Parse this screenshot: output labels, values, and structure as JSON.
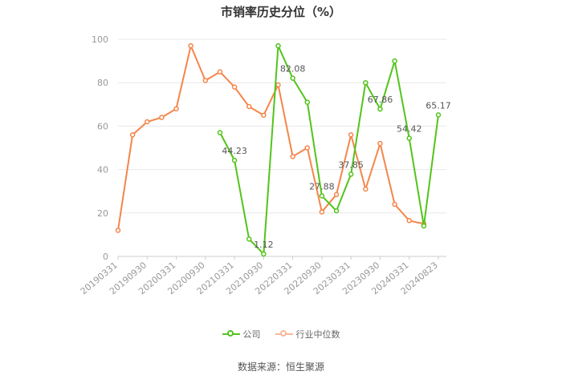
{
  "chart_data": {
    "type": "line",
    "title": "市销率历史分位（%）",
    "ylim": [
      0,
      100
    ],
    "yticks": [
      "0",
      "20",
      "40",
      "60",
      "80",
      "100"
    ],
    "xticks": [
      "20190331",
      "20190930",
      "20200331",
      "20200930",
      "20210331",
      "20210930",
      "20220331",
      "20220930",
      "20230331",
      "20230930",
      "20240331",
      "20240823"
    ],
    "grid": true,
    "legend_position": "bottom",
    "series": [
      {
        "name": "公司",
        "color": "#52c41a",
        "values": [
          null,
          null,
          null,
          null,
          null,
          null,
          null,
          57,
          44.23,
          8,
          1.12,
          97,
          82.08,
          71,
          27.88,
          21,
          37.85,
          80,
          67.86,
          90,
          54.42,
          14,
          65.17
        ],
        "labels": {
          "8": "44.23",
          "10": "1.12",
          "12": "82.08",
          "14": "27.88",
          "16": "37.85",
          "18": "67.86",
          "20": "54.42",
          "22": "65.17"
        }
      },
      {
        "name": "行业中位数",
        "color": "#f5854a",
        "values": [
          12,
          56,
          62,
          64,
          68,
          97,
          81,
          85,
          78,
          69,
          65,
          79,
          46,
          50,
          20.5,
          28.5,
          56,
          31,
          52,
          24,
          16.5,
          15,
          null
        ],
        "labels": {}
      }
    ]
  },
  "source": "数据来源：恒生聚源"
}
